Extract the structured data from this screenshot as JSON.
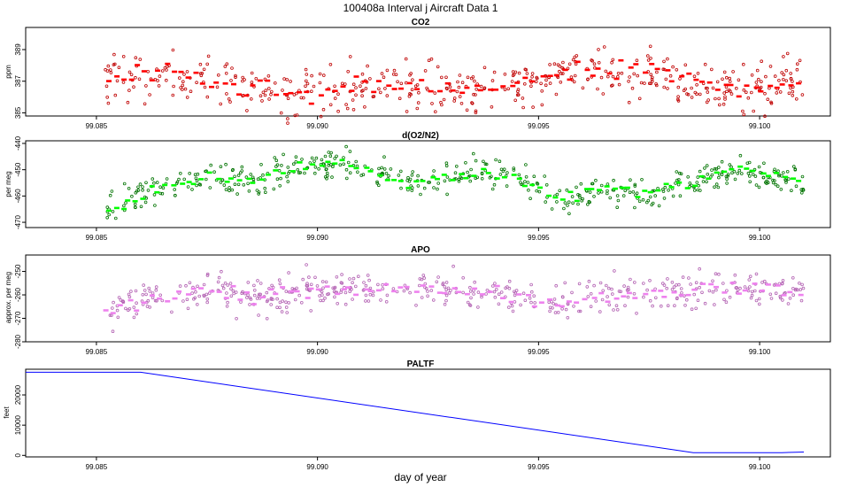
{
  "title": "100408a   Interval j Aircraft Data 1",
  "xaxis_title": "day of year",
  "chart_data": [
    {
      "type": "scatter",
      "title": "CO2",
      "ylabel": "ppm",
      "color": "#ff0000",
      "xlim": [
        99.0834,
        99.1016
      ],
      "ylim": [
        384.8,
        390.4
      ],
      "yticks": [
        385,
        387,
        389
      ],
      "xticks": [
        99.085,
        99.09,
        99.095,
        99.1
      ],
      "xtick_labels": [
        "99.085",
        "99.090",
        "99.095",
        "99.100"
      ],
      "trend": [
        [
          99.0852,
          387.3
        ],
        [
          99.0865,
          387.4
        ],
        [
          99.088,
          386.7
        ],
        [
          99.0898,
          386.0
        ],
        [
          99.0915,
          386.8
        ],
        [
          99.0935,
          386.3
        ],
        [
          99.095,
          387.2
        ],
        [
          99.0965,
          387.6
        ],
        [
          99.0975,
          387.7
        ],
        [
          99.0985,
          386.9
        ],
        [
          99.0995,
          386.7
        ],
        [
          99.101,
          387.0
        ]
      ],
      "scatter_spread": 1.1,
      "x_range": [
        99.0852,
        99.101
      ]
    },
    {
      "type": "scatter",
      "title": "d(O2/N2)",
      "ylabel": "per meg",
      "color": "#00ff00",
      "xlim": [
        99.0834,
        99.1016
      ],
      "ylim": [
        -472,
        -439
      ],
      "yticks": [
        -470,
        -460,
        -450,
        -440
      ],
      "xticks": [
        99.085,
        99.09,
        99.095,
        99.1
      ],
      "xtick_labels": [
        "99.085",
        "99.090",
        "99.095",
        "99.100"
      ],
      "trend": [
        [
          99.0852,
          -466
        ],
        [
          99.0862,
          -458
        ],
        [
          99.0875,
          -453
        ],
        [
          99.0885,
          -455
        ],
        [
          99.0895,
          -449
        ],
        [
          99.0905,
          -447
        ],
        [
          99.092,
          -455
        ],
        [
          99.0935,
          -451
        ],
        [
          99.0945,
          -452
        ],
        [
          99.0955,
          -462
        ],
        [
          99.0965,
          -457
        ],
        [
          99.0975,
          -459
        ],
        [
          99.0985,
          -454
        ],
        [
          99.0995,
          -450
        ],
        [
          99.101,
          -455
        ]
      ],
      "scatter_spread": 4,
      "x_range": [
        99.0852,
        99.101
      ]
    },
    {
      "type": "scatter",
      "title": "APO",
      "ylabel": "approx. per meg",
      "color": "#ee82ee",
      "xlim": [
        99.0834,
        99.1016
      ],
      "ylim": [
        -280,
        -243
      ],
      "yticks": [
        -280,
        -270,
        -260,
        -250
      ],
      "xticks": [
        99.085,
        99.09,
        99.095,
        99.1
      ],
      "xtick_labels": [
        "99.085",
        "99.090",
        "99.095",
        "99.100"
      ],
      "trend": [
        [
          99.0852,
          -268
        ],
        [
          99.0862,
          -262
        ],
        [
          99.0875,
          -258
        ],
        [
          99.0885,
          -262
        ],
        [
          99.0895,
          -258
        ],
        [
          99.0905,
          -257
        ],
        [
          99.092,
          -258
        ],
        [
          99.0935,
          -258
        ],
        [
          99.0945,
          -260
        ],
        [
          99.0955,
          -264
        ],
        [
          99.0965,
          -260
        ],
        [
          99.0975,
          -259
        ],
        [
          99.0985,
          -258
        ],
        [
          99.0995,
          -257
        ],
        [
          99.101,
          -259
        ]
      ],
      "scatter_spread": 5,
      "x_range": [
        99.0852,
        99.101
      ]
    },
    {
      "type": "line",
      "title": "PALTF",
      "ylabel": "feet",
      "color": "#0000ff",
      "xlim": [
        99.0834,
        99.1016
      ],
      "ylim": [
        -500,
        28500
      ],
      "yticks": [
        0,
        10000,
        20000
      ],
      "xticks": [
        99.085,
        99.09,
        99.095,
        99.1
      ],
      "xtick_labels": [
        "99.085",
        "99.090",
        "99.095",
        "99.100"
      ],
      "points": [
        [
          99.0834,
          27500
        ],
        [
          99.086,
          27500
        ],
        [
          99.0985,
          900
        ],
        [
          99.1005,
          900
        ],
        [
          99.101,
          1100
        ]
      ]
    }
  ]
}
